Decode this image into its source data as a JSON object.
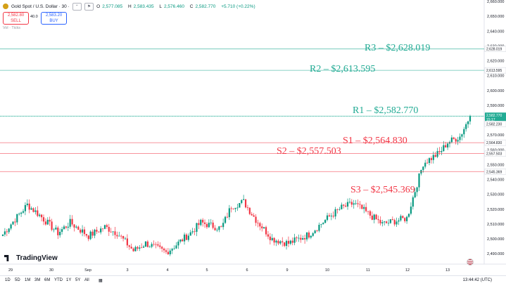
{
  "header": {
    "symbol": "Gold Spot / U.S. Dollar · 30 ·",
    "ohlc": [
      {
        "k": "O",
        "v": "2,577.085"
      },
      {
        "k": "H",
        "v": "2,583.435"
      },
      {
        "k": "L",
        "v": "2,576.460"
      },
      {
        "k": "C",
        "v": "2,582.770"
      },
      {
        "k": "",
        "v": "+5.710 (+0.22%)"
      }
    ],
    "sell_price": "2,582.80",
    "sell_label": "SELL",
    "buy_price": "2,583.20",
    "buy_label": "BUY",
    "spread": "40.0",
    "volume_label": "Vol · Ticks"
  },
  "logo_text": "TradingView",
  "timeframes": [
    "1D",
    "5D",
    "1M",
    "3M",
    "6M",
    "YTD",
    "1Y",
    "5Y",
    "All"
  ],
  "clock": "13:44:42 (UTC)",
  "colors": {
    "up": "#089981",
    "down": "#f23645",
    "resistance": "#22ab94",
    "support": "#f23645",
    "current": "#22ab94"
  },
  "chart_data": {
    "type": "candlestick",
    "title": "Gold Spot / U.S. Dollar · 30",
    "y_ticks": [
      2490,
      2500,
      2510,
      2520,
      2530,
      2540,
      2550,
      2560,
      2570,
      2580,
      2590,
      2600,
      2610,
      2620,
      2630,
      2640,
      2650,
      2660
    ],
    "x_ticks": [
      "29",
      "30",
      "Sep",
      "3",
      "4",
      "5",
      "6",
      "9",
      "10",
      "11",
      "12",
      "13"
    ],
    "ylim": [
      2483,
      2661
    ],
    "levels": [
      {
        "name": "R3",
        "label": "R3 – $2,628.019",
        "value": 2628.019,
        "tag": "2,628.019",
        "kind": "resistance"
      },
      {
        "name": "R2",
        "label": "R2 – $2,613.595",
        "value": 2613.595,
        "tag": "2,613.595",
        "kind": "resistance"
      },
      {
        "name": "R1",
        "label": "R1 – $2,582.770",
        "value": 2582.77,
        "tag": "2,582.770",
        "kind": "resistance"
      },
      {
        "name": "S1",
        "label": "S1 – $2,564.830",
        "value": 2564.83,
        "tag": "2,564.830",
        "kind": "support"
      },
      {
        "name": "S2",
        "label": "S2 – $2,557.503",
        "value": 2557.503,
        "tag": "2,557.503",
        "kind": "support"
      },
      {
        "name": "S3",
        "label": "S3 – $2,545.369",
        "value": 2545.369,
        "tag": "2,545.369",
        "kind": "support"
      }
    ],
    "current_price": {
      "value": 2582.77,
      "tag": "2,582.770",
      "countdown": "15:17"
    },
    "prev_close": {
      "value": 2582.23,
      "tag": "2,582.230"
    },
    "trend": {
      "x_index": [
        0,
        4,
        12,
        18,
        27,
        33,
        42,
        50,
        56,
        64,
        70,
        80,
        84,
        92,
        97,
        107,
        112,
        118,
        124,
        132,
        140,
        150,
        160,
        166,
        172,
        180,
        186,
        192,
        198,
        206,
        214,
        218,
        224,
        229
      ],
      "close": [
        2503,
        2510,
        2523,
        2516,
        2504,
        2511,
        2502,
        2508,
        2504,
        2492,
        2497,
        2491,
        2495,
        2504,
        2511,
        2507,
        2522,
        2525,
        2513,
        2500,
        2497,
        2503,
        2515,
        2521,
        2524,
        2516,
        2510,
        2512,
        2514,
        2551,
        2558,
        2565,
        2569,
        2582.77
      ]
    }
  }
}
